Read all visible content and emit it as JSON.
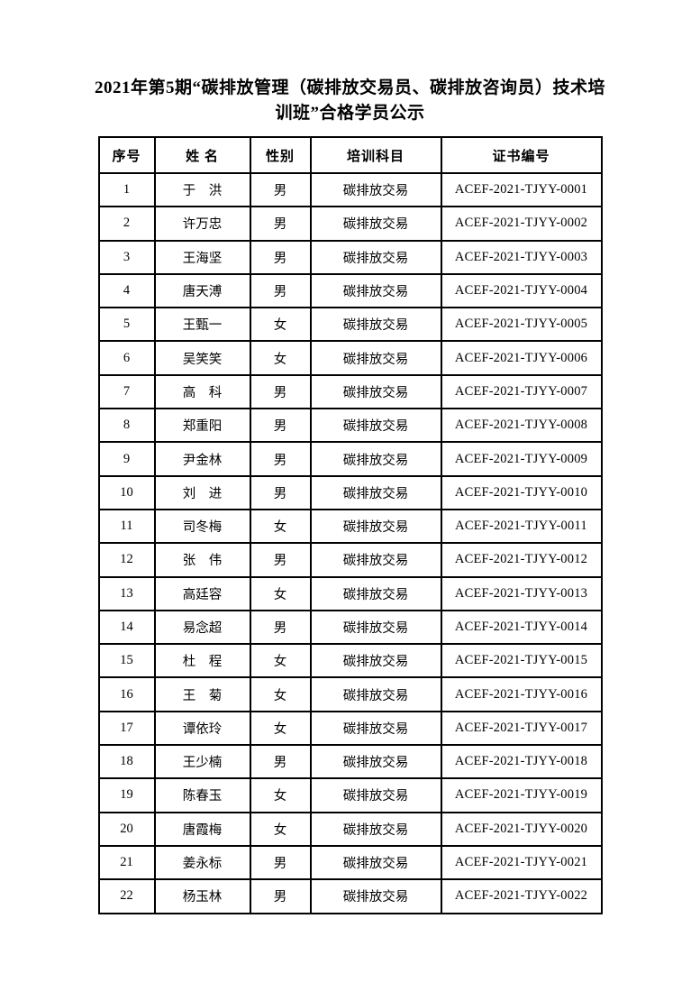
{
  "title": {
    "line1": "2021年第5期“碳排放管理（碳排放交易员、碳排放咨询员）技术培",
    "line2": "训班”合格学员公示"
  },
  "colors": {
    "background": "#ffffff",
    "border": "#000000",
    "text": "#000000"
  },
  "table": {
    "headers": {
      "no": "序号",
      "name": "姓 名",
      "gender": "性别",
      "subject": "培训科目",
      "cert": "证书编号"
    },
    "rows": [
      {
        "no": "1",
        "name": "于　洪",
        "gender": "男",
        "subject": "碳排放交易",
        "cert": "ACEF-2021-TJYY-0001"
      },
      {
        "no": "2",
        "name": "许万忠",
        "gender": "男",
        "subject": "碳排放交易",
        "cert": "ACEF-2021-TJYY-0002"
      },
      {
        "no": "3",
        "name": "王海坚",
        "gender": "男",
        "subject": "碳排放交易",
        "cert": "ACEF-2021-TJYY-0003"
      },
      {
        "no": "4",
        "name": "唐天溥",
        "gender": "男",
        "subject": "碳排放交易",
        "cert": "ACEF-2021-TJYY-0004"
      },
      {
        "no": "5",
        "name": "王甄一",
        "gender": "女",
        "subject": "碳排放交易",
        "cert": "ACEF-2021-TJYY-0005"
      },
      {
        "no": "6",
        "name": "吴笑笑",
        "gender": "女",
        "subject": "碳排放交易",
        "cert": "ACEF-2021-TJYY-0006"
      },
      {
        "no": "7",
        "name": "高　科",
        "gender": "男",
        "subject": "碳排放交易",
        "cert": "ACEF-2021-TJYY-0007"
      },
      {
        "no": "8",
        "name": "郑重阳",
        "gender": "男",
        "subject": "碳排放交易",
        "cert": "ACEF-2021-TJYY-0008"
      },
      {
        "no": "9",
        "name": "尹金林",
        "gender": "男",
        "subject": "碳排放交易",
        "cert": "ACEF-2021-TJYY-0009"
      },
      {
        "no": "10",
        "name": "刘　进",
        "gender": "男",
        "subject": "碳排放交易",
        "cert": "ACEF-2021-TJYY-0010"
      },
      {
        "no": "11",
        "name": "司冬梅",
        "gender": "女",
        "subject": "碳排放交易",
        "cert": "ACEF-2021-TJYY-0011"
      },
      {
        "no": "12",
        "name": "张　伟",
        "gender": "男",
        "subject": "碳排放交易",
        "cert": "ACEF-2021-TJYY-0012"
      },
      {
        "no": "13",
        "name": "高廷容",
        "gender": "女",
        "subject": "碳排放交易",
        "cert": "ACEF-2021-TJYY-0013"
      },
      {
        "no": "14",
        "name": "易念超",
        "gender": "男",
        "subject": "碳排放交易",
        "cert": "ACEF-2021-TJYY-0014"
      },
      {
        "no": "15",
        "name": "杜　程",
        "gender": "女",
        "subject": "碳排放交易",
        "cert": "ACEF-2021-TJYY-0015"
      },
      {
        "no": "16",
        "name": "王　菊",
        "gender": "女",
        "subject": "碳排放交易",
        "cert": "ACEF-2021-TJYY-0016"
      },
      {
        "no": "17",
        "name": "谭依玲",
        "gender": "女",
        "subject": "碳排放交易",
        "cert": "ACEF-2021-TJYY-0017"
      },
      {
        "no": "18",
        "name": "王少楠",
        "gender": "男",
        "subject": "碳排放交易",
        "cert": "ACEF-2021-TJYY-0018"
      },
      {
        "no": "19",
        "name": "陈春玉",
        "gender": "女",
        "subject": "碳排放交易",
        "cert": "ACEF-2021-TJYY-0019"
      },
      {
        "no": "20",
        "name": "唐霞梅",
        "gender": "女",
        "subject": "碳排放交易",
        "cert": "ACEF-2021-TJYY-0020"
      },
      {
        "no": "21",
        "name": "姜永标",
        "gender": "男",
        "subject": "碳排放交易",
        "cert": "ACEF-2021-TJYY-0021"
      },
      {
        "no": "22",
        "name": "杨玉林",
        "gender": "男",
        "subject": "碳排放交易",
        "cert": "ACEF-2021-TJYY-0022"
      }
    ]
  }
}
